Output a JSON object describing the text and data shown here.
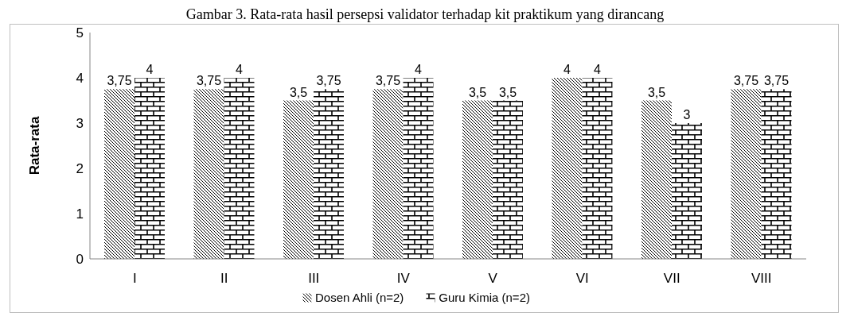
{
  "chart_data": {
    "type": "bar",
    "title": "Gambar 3. Rata-rata hasil persepsi validator terhadap kit praktikum yang dirancang",
    "ylabel": "Rata-rata",
    "categories": [
      "I",
      "II",
      "III",
      "IV",
      "V",
      "VI",
      "VII",
      "VIII"
    ],
    "series": [
      {
        "name": "Dosen Ahli (n=2)",
        "color": "#000000",
        "values": [
          3.75,
          3.75,
          3.5,
          3.75,
          3.5,
          4,
          3.5,
          3.75
        ],
        "value_labels": [
          "3,75",
          "3,75",
          "3,5",
          "3,75",
          "3,5",
          "4",
          "3,5",
          "3,75"
        ]
      },
      {
        "name": "Guru Kimia (n=2)",
        "color": "#000000",
        "values": [
          4,
          4,
          3.75,
          4,
          3.5,
          4,
          3,
          3.75
        ],
        "value_labels": [
          "4",
          "4",
          "3,75",
          "4",
          "3,5",
          "4",
          "3",
          "3,75"
        ]
      }
    ],
    "ylim": [
      0,
      5
    ],
    "yticks": [
      0,
      1,
      2,
      3,
      4,
      5
    ],
    "grid": false,
    "legend": "bottom"
  }
}
